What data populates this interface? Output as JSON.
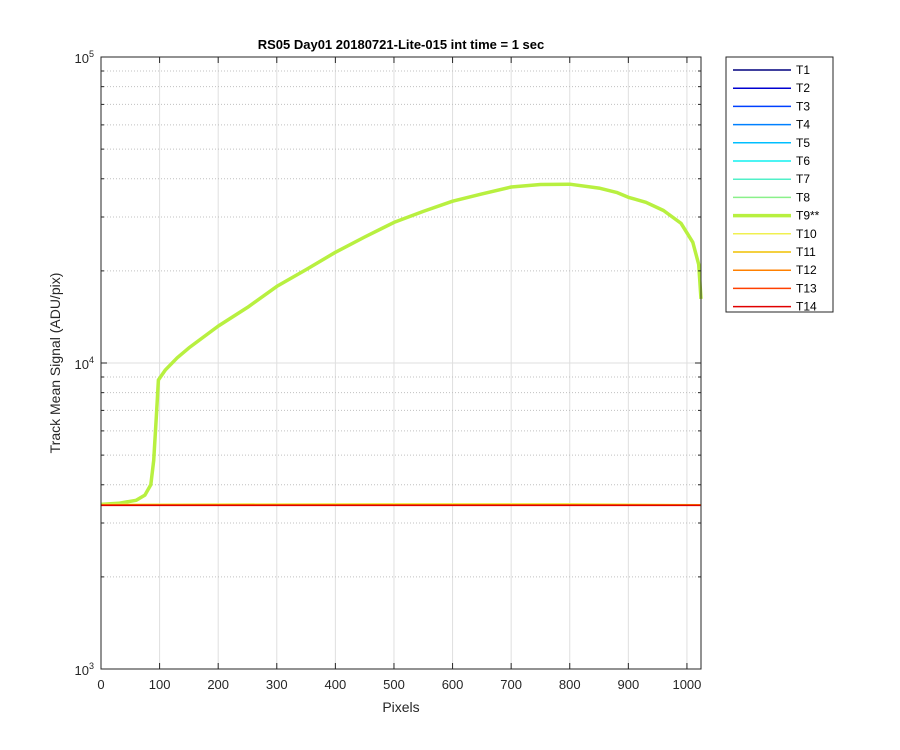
{
  "chart_data": {
    "type": "line",
    "title": "RS05 Day01 20180721-Lite-015 int time = 1 sec",
    "xlabel": "Pixels",
    "ylabel": "Track Mean Signal (ADU/pix)",
    "xlim": [
      0,
      1024
    ],
    "ylim": [
      1000,
      100000
    ],
    "yscale": "log",
    "x_ticks": [
      0,
      100,
      200,
      300,
      400,
      500,
      600,
      700,
      800,
      900,
      1000
    ],
    "y_ticks": [
      {
        "value": 1000,
        "base": "10",
        "exp": "3"
      },
      {
        "value": 10000,
        "base": "10",
        "exp": "4"
      },
      {
        "value": 100000,
        "base": "10",
        "exp": "5"
      }
    ],
    "grid": true,
    "minor_grid": true,
    "legend_position": "outside-right",
    "series": [
      {
        "name": "T1",
        "color": "#00007f",
        "points": [
          [
            0,
            3430
          ],
          [
            1024,
            3430
          ]
        ]
      },
      {
        "name": "T2",
        "color": "#0000d0",
        "points": [
          [
            0,
            3430
          ],
          [
            1024,
            3430
          ]
        ]
      },
      {
        "name": "T3",
        "color": "#0040ff",
        "points": [
          [
            0,
            3430
          ],
          [
            1024,
            3430
          ]
        ]
      },
      {
        "name": "T4",
        "color": "#0080ff",
        "points": [
          [
            0,
            3430
          ],
          [
            1024,
            3430
          ]
        ]
      },
      {
        "name": "T5",
        "color": "#00bfff",
        "points": [
          [
            0,
            3430
          ],
          [
            1024,
            3430
          ]
        ]
      },
      {
        "name": "T6",
        "color": "#10f0f0",
        "points": [
          [
            0,
            3440
          ],
          [
            1024,
            3440
          ]
        ]
      },
      {
        "name": "T7",
        "color": "#50f0c8",
        "points": [
          [
            0,
            3440
          ],
          [
            1024,
            3440
          ]
        ]
      },
      {
        "name": "T8",
        "color": "#8af08a",
        "points": [
          [
            0,
            3440
          ],
          [
            1024,
            3440
          ]
        ]
      },
      {
        "name": "T9**",
        "color": "#b8f040",
        "bold": true,
        "points": [
          [
            0,
            3450
          ],
          [
            30,
            3480
          ],
          [
            60,
            3560
          ],
          [
            75,
            3700
          ],
          [
            85,
            4000
          ],
          [
            90,
            4800
          ],
          [
            95,
            7000
          ],
          [
            98,
            8800
          ],
          [
            110,
            9500
          ],
          [
            130,
            10400
          ],
          [
            150,
            11200
          ],
          [
            200,
            13200
          ],
          [
            250,
            15200
          ],
          [
            300,
            17800
          ],
          [
            350,
            20200
          ],
          [
            400,
            23000
          ],
          [
            450,
            25800
          ],
          [
            500,
            28800
          ],
          [
            550,
            31300
          ],
          [
            600,
            33800
          ],
          [
            650,
            35700
          ],
          [
            700,
            37600
          ],
          [
            750,
            38300
          ],
          [
            800,
            38400
          ],
          [
            850,
            37300
          ],
          [
            880,
            36100
          ],
          [
            900,
            34800
          ],
          [
            930,
            33500
          ],
          [
            960,
            31500
          ],
          [
            990,
            28600
          ],
          [
            1010,
            24800
          ],
          [
            1020,
            21000
          ],
          [
            1024,
            16200
          ]
        ]
      },
      {
        "name": "T10",
        "color": "#f0f050",
        "points": [
          [
            0,
            3450
          ],
          [
            200,
            3460
          ],
          [
            500,
            3470
          ],
          [
            800,
            3470
          ],
          [
            1024,
            3440
          ]
        ]
      },
      {
        "name": "T11",
        "color": "#f0c000",
        "points": [
          [
            0,
            3440
          ],
          [
            1024,
            3440
          ]
        ]
      },
      {
        "name": "T12",
        "color": "#ff8000",
        "points": [
          [
            0,
            3435
          ],
          [
            1024,
            3435
          ]
        ]
      },
      {
        "name": "T13",
        "color": "#ff4000",
        "points": [
          [
            0,
            3430
          ],
          [
            1024,
            3430
          ]
        ]
      },
      {
        "name": "T14",
        "color": "#e00000",
        "points": [
          [
            0,
            3425
          ],
          [
            1024,
            3425
          ]
        ]
      }
    ]
  }
}
